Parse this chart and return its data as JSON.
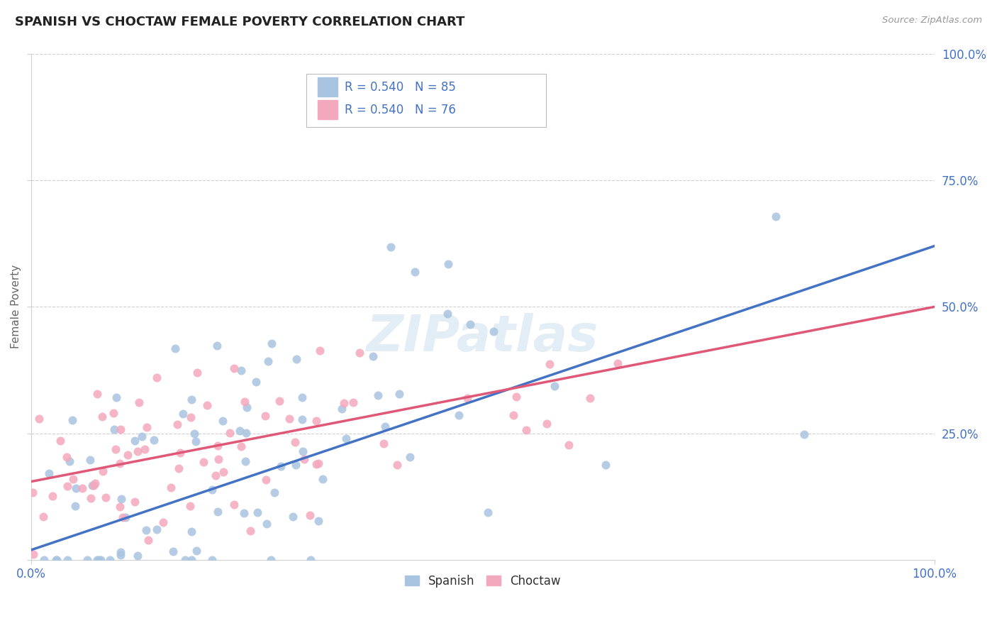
{
  "title": "SPANISH VS CHOCTAW FEMALE POVERTY CORRELATION CHART",
  "source_text": "Source: ZipAtlas.com",
  "ylabel": "Female Poverty",
  "spanish_R": 0.54,
  "spanish_N": 85,
  "choctaw_R": 0.54,
  "choctaw_N": 76,
  "spanish_color": "#a8c4e0",
  "choctaw_color": "#f4a8be",
  "spanish_line_color": "#4472c4",
  "choctaw_line_color": "#e05878",
  "watermark": "ZIPatlas",
  "background_color": "#ffffff",
  "grid_color": "#d0d0d0",
  "title_color": "#222222",
  "tick_color": "#4472c4",
  "ylabel_color": "#666666",
  "source_color": "#999999",
  "spanish_intercept": 0.02,
  "spanish_slope": 0.6,
  "choctaw_intercept": 0.155,
  "choctaw_slope": 0.345
}
